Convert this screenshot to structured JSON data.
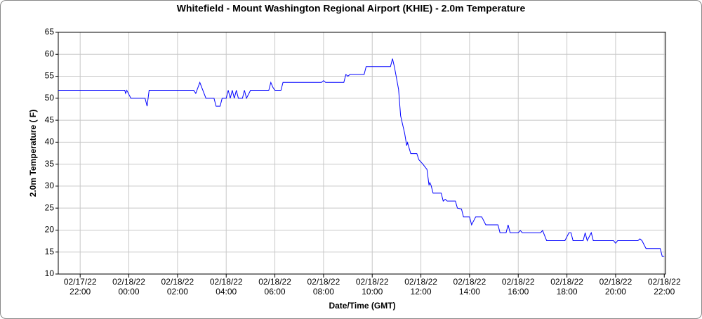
{
  "chart_data": {
    "type": "line",
    "title": "Whitefield - Mount Washington Regional Airport (KHIE) - 2.0m Temperature",
    "xlabel": "Date/Time (GMT)",
    "ylabel": "2.0m Temperature ( F)",
    "x": [
      "2022-02-17 21:06",
      "2022-02-17 23:50",
      "2022-02-17 23:52",
      "2022-02-17 23:55",
      "2022-02-18 00:05",
      "2022-02-18 00:40",
      "2022-02-18 00:45",
      "2022-02-18 00:50",
      "2022-02-18 02:40",
      "2022-02-18 02:45",
      "2022-02-18 02:55",
      "2022-02-18 03:10",
      "2022-02-18 03:30",
      "2022-02-18 03:35",
      "2022-02-18 03:45",
      "2022-02-18 03:50",
      "2022-02-18 04:00",
      "2022-02-18 04:05",
      "2022-02-18 04:10",
      "2022-02-18 04:15",
      "2022-02-18 04:20",
      "2022-02-18 04:25",
      "2022-02-18 04:30",
      "2022-02-18 04:40",
      "2022-02-18 04:45",
      "2022-02-18 04:50",
      "2022-02-18 05:00",
      "2022-02-18 05:45",
      "2022-02-18 05:50",
      "2022-02-18 05:55",
      "2022-02-18 06:00",
      "2022-02-18 06:15",
      "2022-02-18 06:20",
      "2022-02-18 07:55",
      "2022-02-18 08:00",
      "2022-02-18 08:05",
      "2022-02-18 08:50",
      "2022-02-18 08:55",
      "2022-02-18 09:00",
      "2022-02-18 09:05",
      "2022-02-18 09:40",
      "2022-02-18 09:45",
      "2022-02-18 10:45",
      "2022-02-18 10:50",
      "2022-02-18 10:55",
      "2022-02-18 11:05",
      "2022-02-18 11:10",
      "2022-02-18 11:15",
      "2022-02-18 11:20",
      "2022-02-18 11:25",
      "2022-02-18 11:27",
      "2022-02-18 11:35",
      "2022-02-18 11:50",
      "2022-02-18 11:55",
      "2022-02-18 12:05",
      "2022-02-18 12:15",
      "2022-02-18 12:20",
      "2022-02-18 12:22",
      "2022-02-18 12:25",
      "2022-02-18 12:30",
      "2022-02-18 12:50",
      "2022-02-18 12:55",
      "2022-02-18 13:00",
      "2022-02-18 13:05",
      "2022-02-18 13:25",
      "2022-02-18 13:30",
      "2022-02-18 13:40",
      "2022-02-18 13:45",
      "2022-02-18 14:00",
      "2022-02-18 14:05",
      "2022-02-18 14:15",
      "2022-02-18 14:30",
      "2022-02-18 14:40",
      "2022-02-18 15:10",
      "2022-02-18 15:15",
      "2022-02-18 15:30",
      "2022-02-18 15:35",
      "2022-02-18 15:40",
      "2022-02-18 16:00",
      "2022-02-18 16:05",
      "2022-02-18 16:10",
      "2022-02-18 16:55",
      "2022-02-18 17:00",
      "2022-02-18 17:10",
      "2022-02-18 17:55",
      "2022-02-18 18:05",
      "2022-02-18 18:10",
      "2022-02-18 18:15",
      "2022-02-18 18:40",
      "2022-02-18 18:45",
      "2022-02-18 18:50",
      "2022-02-18 19:00",
      "2022-02-18 19:05",
      "2022-02-18 19:55",
      "2022-02-18 20:00",
      "2022-02-18 20:05",
      "2022-02-18 20:55",
      "2022-02-18 21:00",
      "2022-02-18 21:05",
      "2022-02-18 21:15",
      "2022-02-18 21:50",
      "2022-02-18 21:55",
      "2022-02-18 22:00"
    ],
    "series": [
      {
        "name": "2.0m Temperature",
        "color": "#0000ff",
        "values": [
          51.8,
          51.8,
          51.1,
          51.8,
          50,
          50,
          48.2,
          51.8,
          51.8,
          51.1,
          53.6,
          50,
          50,
          48.2,
          48.2,
          50,
          50,
          51.8,
          50,
          51.8,
          50,
          51.8,
          50,
          50,
          51.8,
          50,
          51.8,
          51.8,
          53.6,
          52.5,
          51.8,
          51.8,
          53.6,
          53.6,
          54,
          53.6,
          53.6,
          55.4,
          55,
          55.4,
          55.4,
          57.2,
          57.2,
          59,
          57,
          52,
          46,
          44,
          42,
          39.2,
          39.9,
          37.4,
          37.4,
          36,
          35,
          33.8,
          30.2,
          30.8,
          30.2,
          28.4,
          28.4,
          26.6,
          27,
          26.6,
          26.6,
          25,
          24.8,
          23,
          23,
          21.2,
          23,
          23,
          21.2,
          21.2,
          19.4,
          19.4,
          21.2,
          19.4,
          19.4,
          19.9,
          19.4,
          19.4,
          19.9,
          17.6,
          17.6,
          19.4,
          19.4,
          17.6,
          17.6,
          19.4,
          17.6,
          19.4,
          17.6,
          17.6,
          17,
          17.6,
          17.6,
          18,
          17.6,
          15.8,
          15.8,
          14,
          14
        ]
      }
    ],
    "xlim": [
      "2022-02-17 21:06",
      "2022-02-18 22:03"
    ],
    "xticks": [
      {
        "value": "2022-02-17 22:00",
        "label": [
          "02/17/22",
          "22:00"
        ]
      },
      {
        "value": "2022-02-18 00:00",
        "label": [
          "02/18/22",
          "00:00"
        ]
      },
      {
        "value": "2022-02-18 02:00",
        "label": [
          "02/18/22",
          "02:00"
        ]
      },
      {
        "value": "2022-02-18 04:00",
        "label": [
          "02/18/22",
          "04:00"
        ]
      },
      {
        "value": "2022-02-18 06:00",
        "label": [
          "02/18/22",
          "06:00"
        ]
      },
      {
        "value": "2022-02-18 08:00",
        "label": [
          "02/18/22",
          "08:00"
        ]
      },
      {
        "value": "2022-02-18 10:00",
        "label": [
          "02/18/22",
          "10:00"
        ]
      },
      {
        "value": "2022-02-18 12:00",
        "label": [
          "02/18/22",
          "12:00"
        ]
      },
      {
        "value": "2022-02-18 14:00",
        "label": [
          "02/18/22",
          "14:00"
        ]
      },
      {
        "value": "2022-02-18 16:00",
        "label": [
          "02/18/22",
          "16:00"
        ]
      },
      {
        "value": "2022-02-18 18:00",
        "label": [
          "02/18/22",
          "18:00"
        ]
      },
      {
        "value": "2022-02-18 20:00",
        "label": [
          "02/18/22",
          "20:00"
        ]
      },
      {
        "value": "2022-02-18 22:00",
        "label": [
          "02/18/22",
          "22:00"
        ]
      }
    ],
    "ylim": [
      10,
      65
    ],
    "yticks": [
      10,
      15,
      20,
      25,
      30,
      35,
      40,
      45,
      50,
      55,
      60,
      65
    ],
    "grid": true
  }
}
